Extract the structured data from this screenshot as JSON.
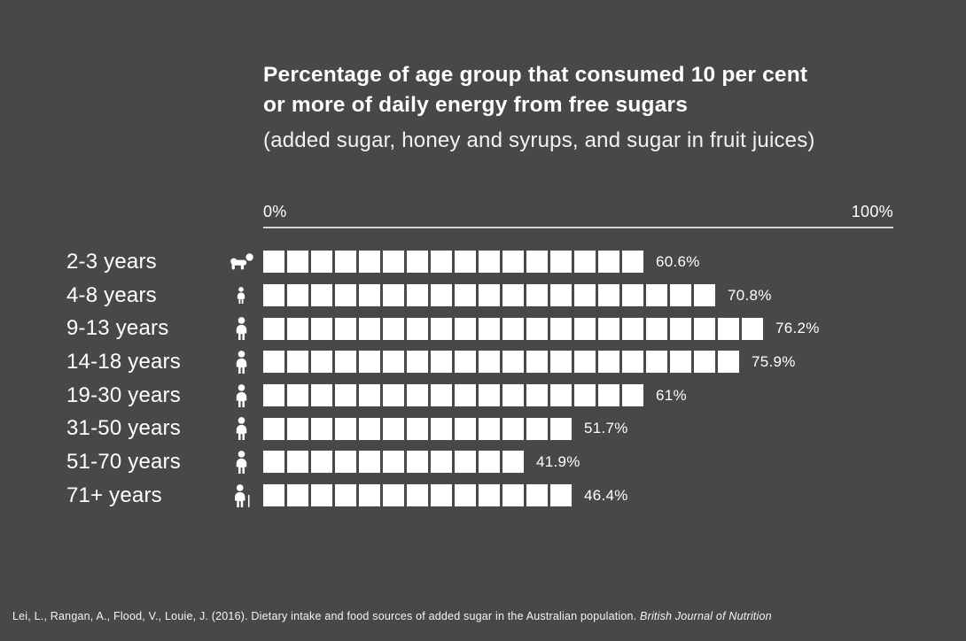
{
  "chart_data": {
    "type": "bar",
    "variant": "pictogram-unit-bar",
    "title_lines": [
      "Percentage of age group that consumed 10 per cent",
      "or more of daily energy from free sugars"
    ],
    "subtitle": "(added sugar, honey and syrups, and sugar in fruit juices)",
    "xlabel": "",
    "ylabel": "",
    "axis": {
      "min": 0,
      "max": 100,
      "min_label": "0%",
      "max_label": "100%"
    },
    "grid": false,
    "legend_position": "none",
    "categories": [
      "2-3 years",
      "4-8 years",
      "9-13 years",
      "14-18 years",
      "19-30 years",
      "31-50 years",
      "51-70 years",
      "71+ years"
    ],
    "values": [
      60.6,
      70.8,
      76.2,
      75.9,
      61,
      51.7,
      41.9,
      46.4
    ],
    "rows": [
      {
        "category": "2-3 years",
        "value": 60.6,
        "value_label": "60.6%",
        "squares": 16,
        "icon": "baby-crawling-icon"
      },
      {
        "category": "4-8 years",
        "value": 70.8,
        "value_label": "70.8%",
        "squares": 19,
        "icon": "child-icon"
      },
      {
        "category": "9-13 years",
        "value": 76.2,
        "value_label": "76.2%",
        "squares": 21,
        "icon": "person-icon"
      },
      {
        "category": "14-18 years",
        "value": 75.9,
        "value_label": "75.9%",
        "squares": 20,
        "icon": "person-icon"
      },
      {
        "category": "19-30 years",
        "value": 61,
        "value_label": "61%",
        "squares": 16,
        "icon": "person-icon"
      },
      {
        "category": "31-50 years",
        "value": 51.7,
        "value_label": "51.7%",
        "squares": 13,
        "icon": "person-icon"
      },
      {
        "category": "51-70 years",
        "value": 41.9,
        "value_label": "41.9%",
        "squares": 11,
        "icon": "person-icon"
      },
      {
        "category": "71+ years",
        "value": 46.4,
        "value_label": "46.4%",
        "squares": 13,
        "icon": "person-with-cane-icon"
      }
    ]
  },
  "footer": {
    "citation": "Lei, L., Rangan, A., Flood, V., Louie, J. (2016). Dietary intake and food sources of added sugar in the Australian population.",
    "journal": "British Journal of Nutrition"
  },
  "colors": {
    "background": "#4a4846",
    "foreground": "#ffffff",
    "axis_line": "#d6d6d6",
    "square_fill": "#ffffff"
  }
}
